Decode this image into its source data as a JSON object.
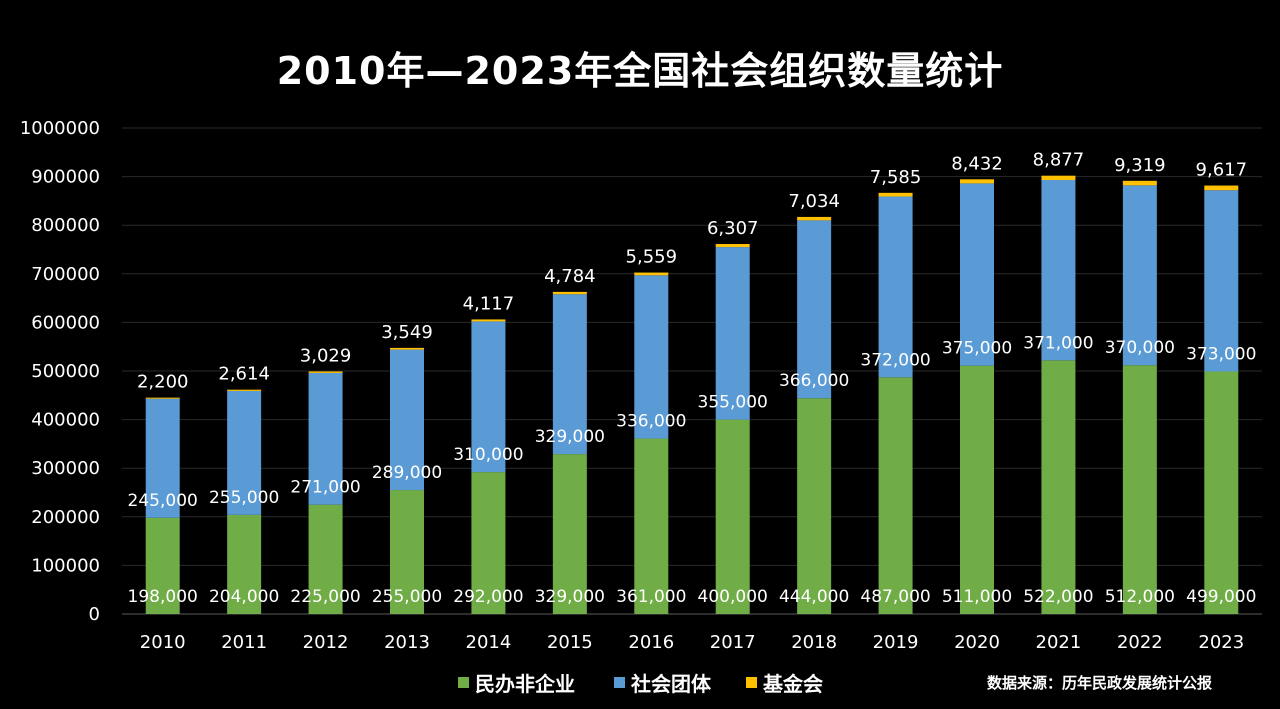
{
  "chart_data": {
    "type": "bar",
    "stacked": true,
    "title": "2010年—2023年全国社会组织数量统计",
    "categories": [
      "2010",
      "2011",
      "2012",
      "2013",
      "2014",
      "2015",
      "2016",
      "2017",
      "2018",
      "2019",
      "2020",
      "2021",
      "2022",
      "2023"
    ],
    "series": [
      {
        "name": "民办非企业",
        "color": "#70ad47",
        "values": [
          198000,
          204000,
          225000,
          255000,
          292000,
          329000,
          361000,
          400000,
          444000,
          487000,
          511000,
          522000,
          512000,
          499000
        ],
        "labels": [
          "198,000",
          "204,000",
          "225,000",
          "255,000",
          "292,000",
          "329,000",
          "361,000",
          "400,000",
          "444,000",
          "487,000",
          "511,000",
          "522,000",
          "512,000",
          "499,000"
        ]
      },
      {
        "name": "社会团体",
        "color": "#5b9bd5",
        "values": [
          245000,
          255000,
          271000,
          289000,
          310000,
          329000,
          336000,
          355000,
          366000,
          372000,
          375000,
          371000,
          370000,
          373000
        ],
        "labels": [
          "245,000",
          "255,000",
          "271,000",
          "289,000",
          "310,000",
          "329,000",
          "336,000",
          "355,000",
          "366,000",
          "372,000",
          "375,000",
          "371,000",
          "370,000",
          "373,000"
        ]
      },
      {
        "name": "基金会",
        "color": "#ffc000",
        "values": [
          2200,
          2614,
          3029,
          3549,
          4117,
          4784,
          5559,
          6307,
          7034,
          7585,
          8432,
          8877,
          9319,
          9617
        ],
        "labels": [
          "2,200",
          "2,614",
          "3,029",
          "3,549",
          "4,117",
          "4,784",
          "5,559",
          "6,307",
          "7,034",
          "7,585",
          "8,432",
          "8,877",
          "9,319",
          "9,617"
        ]
      }
    ],
    "ylim": [
      0,
      1000000
    ],
    "yticks": [
      "0",
      "100000",
      "200000",
      "300000",
      "400000",
      "500000",
      "600000",
      "700000",
      "800000",
      "900000",
      "1000000"
    ],
    "grid": true,
    "legend_position": "bottom"
  },
  "source_note": "数据来源：历年民政发展统计公报"
}
